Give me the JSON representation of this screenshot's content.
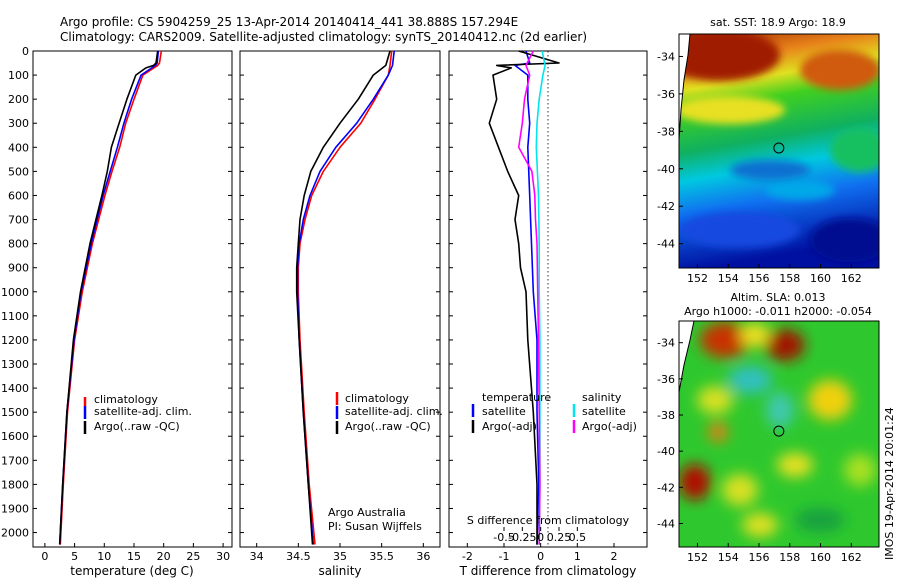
{
  "header": {
    "title_line1": "Argo profile: CS 5904259_25 13-Apr-2014 20140414_441 38.888S 157.294E",
    "title_line2": "Climatology: CARS2009. Satellite-adjusted climatology: synTS_20140412.nc (2d earlier)"
  },
  "colors": {
    "climatology": "#ff0000",
    "satellite": "#0000ff",
    "argo": "#000000",
    "salinity_satellite": "#00e5ee",
    "salinity_argo": "#ff00ff"
  },
  "credits": {
    "org": "Argo Australia",
    "pi": "PI: Susan Wijffels"
  },
  "side_label": "IMOS 19-Apr-2014 20:01:24",
  "chart_data": [
    {
      "id": "temperature",
      "type": "line",
      "xlabel": "temperature (deg C)",
      "ylabel": "",
      "xlim": [
        -2,
        31.5
      ],
      "ylim": [
        2060,
        0
      ],
      "xticks": [
        0,
        5,
        10,
        15,
        20,
        25,
        30
      ],
      "xtick_labels": [
        "0",
        "5",
        "10",
        "15",
        "20",
        "25",
        "30"
      ],
      "yticks": [
        0,
        100,
        200,
        300,
        400,
        500,
        600,
        700,
        800,
        900,
        1000,
        1100,
        1200,
        1300,
        1400,
        1500,
        1600,
        1700,
        1800,
        1900,
        2000
      ],
      "ytick_labels": [
        "0",
        "100",
        "200",
        "300",
        "400",
        "500",
        "600",
        "700",
        "800",
        "900",
        "1000",
        "1100",
        "1200",
        "1300",
        "1400",
        "1500",
        "1600",
        "1700",
        "1800",
        "1900",
        "2000"
      ],
      "legend": [
        "climatology",
        "satellite-adj. clim.",
        "Argo(..raw -QC)"
      ],
      "series": [
        {
          "name": "climatology",
          "color": "#ff0000",
          "depth": [
            0,
            50,
            60,
            100,
            200,
            300,
            400,
            500,
            600,
            800,
            1000,
            1200,
            1500,
            1800,
            2050
          ],
          "values": [
            19.6,
            19.3,
            19.0,
            16.5,
            15.0,
            13.6,
            12.6,
            11.3,
            10.1,
            8.0,
            6.3,
            5.0,
            3.8,
            3.1,
            2.6
          ]
        },
        {
          "name": "satellite-adj. clim.",
          "color": "#0000ff",
          "depth": [
            0,
            50,
            60,
            100,
            200,
            300,
            400,
            500,
            600,
            800,
            1000,
            1200,
            1500,
            1800,
            2050
          ],
          "values": [
            19.1,
            18.9,
            18.6,
            16.2,
            14.6,
            13.3,
            12.2,
            11.0,
            9.8,
            7.8,
            6.1,
            4.9,
            3.7,
            3.0,
            2.5
          ]
        },
        {
          "name": "Argo(..raw -QC)",
          "color": "#000000",
          "depth": [
            0,
            50,
            60,
            70,
            100,
            200,
            300,
            400,
            500,
            600,
            800,
            1000,
            1200,
            1500,
            1800,
            2050
          ],
          "values": [
            19.0,
            18.7,
            18.3,
            17.0,
            15.3,
            13.8,
            12.5,
            11.2,
            10.5,
            9.6,
            7.6,
            6.0,
            4.8,
            3.7,
            3.0,
            2.5
          ]
        }
      ]
    },
    {
      "id": "salinity",
      "type": "line",
      "xlabel": "salinity",
      "xlim": [
        33.8,
        36.2
      ],
      "ylim": [
        2060,
        0
      ],
      "xticks": [
        34,
        34.5,
        35,
        35.5,
        36
      ],
      "xtick_labels": [
        "34",
        "34.5",
        "35",
        "35.5",
        "36"
      ],
      "legend": [
        "climatology",
        "satellite-adj. clim.",
        "Argo(..raw -QC)"
      ],
      "series": [
        {
          "name": "climatology",
          "color": "#ff0000",
          "depth": [
            0,
            60,
            100,
            200,
            300,
            400,
            500,
            600,
            700,
            800,
            900,
            1000,
            1200,
            1500,
            1800,
            2050
          ],
          "values": [
            35.62,
            35.6,
            35.58,
            35.42,
            35.25,
            35.0,
            34.8,
            34.66,
            34.58,
            34.52,
            34.5,
            34.5,
            34.52,
            34.57,
            34.63,
            34.7
          ]
        },
        {
          "name": "satellite-adj. clim.",
          "color": "#0000ff",
          "depth": [
            0,
            60,
            100,
            200,
            300,
            400,
            500,
            600,
            700,
            800,
            900,
            1000,
            1200,
            1500,
            1800,
            2050
          ],
          "values": [
            35.65,
            35.63,
            35.58,
            35.4,
            35.2,
            34.95,
            34.76,
            34.64,
            34.56,
            34.51,
            34.49,
            34.49,
            34.51,
            34.56,
            34.62,
            34.68
          ]
        },
        {
          "name": "Argo(..raw -QC)",
          "color": "#000000",
          "depth": [
            0,
            60,
            100,
            200,
            300,
            400,
            500,
            600,
            700,
            800,
            900,
            1000,
            1200,
            1500,
            1800,
            2050
          ],
          "values": [
            35.6,
            35.55,
            35.4,
            35.22,
            35.0,
            34.8,
            34.65,
            34.57,
            34.52,
            34.5,
            34.48,
            34.48,
            34.51,
            34.56,
            34.62,
            34.67
          ]
        }
      ]
    },
    {
      "id": "difference",
      "type": "line",
      "xlabel": "T difference from climatology",
      "xlabel_top": "S difference from climatology",
      "xlim": [
        -2.5,
        2.9
      ],
      "ylim": [
        2060,
        0
      ],
      "xticks": [
        -2,
        -1,
        0,
        1,
        2
      ],
      "xtick_labels": [
        "-2",
        "-1",
        "0",
        "1",
        "2"
      ],
      "sticks": [
        -0.5,
        -0.25,
        0,
        0.25,
        0.5
      ],
      "stick_labels": [
        "-0.5",
        "-0.25",
        "0",
        "0.25",
        "0.5"
      ],
      "legend_headers": [
        "temperature",
        "salinity"
      ],
      "legend": [
        "satellite",
        "Argo(-adj)",
        "satellite",
        "Argo(-adj)"
      ],
      "series": [
        {
          "name": "temperature satellite",
          "color": "#0000ff",
          "depth": [
            0,
            50,
            60,
            100,
            200,
            300,
            400,
            600,
            800,
            1000,
            1200,
            1500,
            1800,
            2050
          ],
          "values": [
            -0.4,
            -0.3,
            -0.7,
            -0.35,
            -0.35,
            -0.3,
            -0.35,
            -0.3,
            -0.25,
            -0.2,
            -0.1,
            -0.1,
            -0.05,
            -0.1
          ]
        },
        {
          "name": "temperature Argo(-adj)",
          "color": "#000000",
          "depth": [
            0,
            50,
            60,
            70,
            100,
            200,
            300,
            400,
            500,
            600,
            700,
            800,
            900,
            1000,
            1200,
            1500,
            1800,
            2050
          ],
          "values": [
            -0.6,
            0.5,
            -1.2,
            -0.8,
            -1.3,
            -1.2,
            -1.4,
            -1.15,
            -0.9,
            -0.6,
            -0.7,
            -0.6,
            -0.55,
            -0.4,
            -0.35,
            -0.2,
            -0.1,
            -0.1
          ]
        },
        {
          "name": "salinity satellite",
          "color": "#00e5ee",
          "depth": [
            0,
            60,
            100,
            200,
            300,
            400,
            600,
            800,
            1000,
            1200,
            1500,
            1800,
            2050
          ],
          "values": [
            0.02,
            0.06,
            0.03,
            -0.02,
            -0.05,
            -0.06,
            -0.03,
            -0.02,
            -0.02,
            -0.01,
            -0.01,
            -0.01,
            -0.02
          ]
        },
        {
          "name": "salinity Argo(-adj)",
          "color": "#ff00ff",
          "depth": [
            0,
            60,
            100,
            200,
            300,
            400,
            500,
            600,
            700,
            800,
            1000,
            1200,
            1500,
            1800,
            2050
          ],
          "values": [
            -0.1,
            -0.2,
            -0.15,
            -0.22,
            -0.25,
            -0.3,
            -0.12,
            -0.08,
            -0.07,
            -0.05,
            -0.04,
            -0.03,
            -0.02,
            -0.01,
            -0.02
          ]
        }
      ]
    },
    {
      "id": "sst_map",
      "type": "heatmap",
      "title": "sat. SST: 18.9  Argo: 18.9",
      "xlim": [
        150.8,
        163.8
      ],
      "ylim": [
        -45.3,
        -32.8
      ],
      "xticks": [
        152,
        154,
        156,
        158,
        160,
        162
      ],
      "xtick_labels": [
        "152",
        "154",
        "156",
        "158",
        "160",
        "162"
      ],
      "yticks": [
        -34,
        -36,
        -38,
        -40,
        -42,
        -44
      ],
      "ytick_labels": [
        "-34",
        "-36",
        "-38",
        "-40",
        "-42",
        "-44"
      ],
      "marker": {
        "lon": 157.29,
        "lat": -38.89
      }
    },
    {
      "id": "sla_map",
      "type": "heatmap",
      "title_line1": "Altim. SLA: 0.013",
      "title_line2": "Argo h1000: -0.011 h2000: -0.054",
      "xlim": [
        150.8,
        163.8
      ],
      "ylim": [
        -45.3,
        -32.8
      ],
      "xticks": [
        152,
        154,
        156,
        158,
        160,
        162
      ],
      "xtick_labels": [
        "152",
        "154",
        "156",
        "158",
        "160",
        "162"
      ],
      "yticks": [
        -34,
        -36,
        -38,
        -40,
        -42,
        -44
      ],
      "ytick_labels": [
        "-34",
        "-36",
        "-38",
        "-40",
        "-42",
        "-44"
      ],
      "marker": {
        "lon": 157.29,
        "lat": -38.89
      }
    }
  ]
}
